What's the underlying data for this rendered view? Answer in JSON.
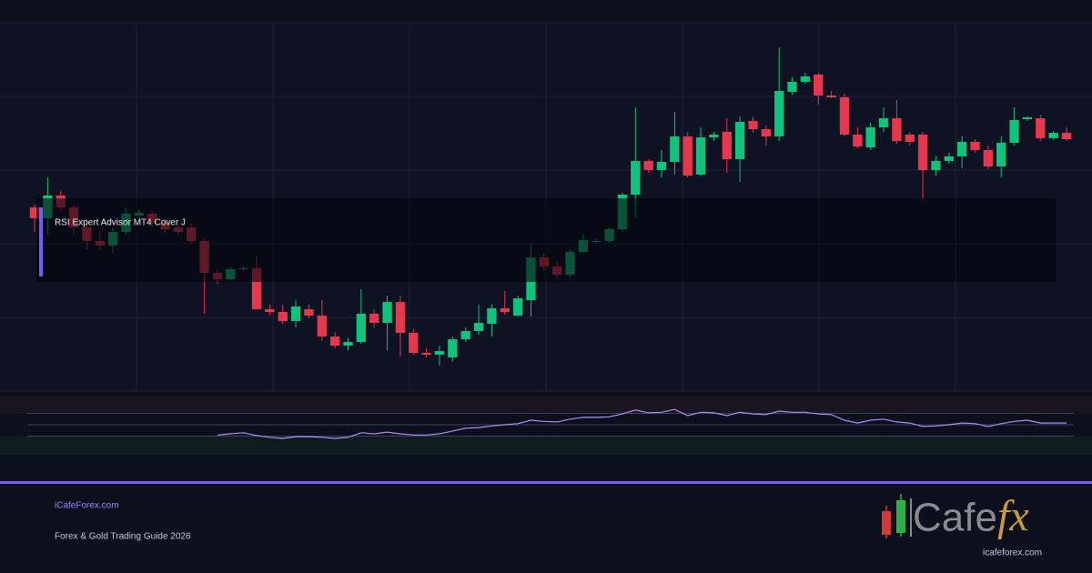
{
  "chart_data": [
    {
      "type": "candlestick",
      "open": [
        202,
        190,
        215,
        202,
        180,
        165,
        160,
        175,
        193,
        195,
        185,
        180,
        180,
        165,
        130,
        123,
        134,
        135,
        90,
        87,
        77,
        90,
        83,
        60,
        50,
        54,
        85,
        75,
        98,
        64,
        42,
        40,
        37,
        57,
        66,
        74,
        91,
        83,
        100,
        147,
        137,
        128,
        153,
        164,
        165,
        178,
        216,
        253,
        243,
        252,
        280,
        238,
        279,
        285,
        255,
        297,
        288,
        280,
        329,
        340,
        348,
        325,
        323,
        282,
        268,
        290,
        300,
        282,
        282,
        243,
        253,
        258,
        274,
        265,
        247,
        273,
        299,
        300,
        278,
        284
      ],
      "high": [
        205,
        235,
        220,
        205,
        185,
        175,
        180,
        202,
        200,
        198,
        190,
        185,
        185,
        168,
        134,
        137,
        137,
        148,
        95,
        95,
        100,
        95,
        100,
        65,
        58,
        112,
        90,
        105,
        105,
        68,
        47,
        50,
        60,
        70,
        95,
        95,
        110,
        105,
        162,
        152,
        142,
        156,
        172,
        168,
        180,
        218,
        312,
        255,
        265,
        307,
        285,
        290,
        285,
        300,
        302,
        302,
        292,
        378,
        345,
        350,
        350,
        330,
        327,
        290,
        295,
        312,
        320,
        285,
        285,
        258,
        262,
        280,
        277,
        270,
        280,
        312,
        302,
        304,
        286,
        290
      ],
      "low": [
        175,
        172,
        198,
        172,
        155,
        155,
        152,
        172,
        190,
        180,
        174,
        172,
        162,
        85,
        118,
        122,
        132,
        90,
        83,
        74,
        70,
        80,
        55,
        47,
        45,
        52,
        70,
        45,
        38,
        40,
        37,
        28,
        32,
        54,
        62,
        60,
        84,
        82,
        82,
        132,
        124,
        125,
        152,
        162,
        163,
        175,
        190,
        240,
        235,
        238,
        235,
        236,
        275,
        240,
        230,
        284,
        270,
        275,
        326,
        338,
        315,
        322,
        280,
        267,
        265,
        285,
        272,
        270,
        212,
        237,
        250,
        245,
        262,
        244,
        235,
        270,
        297,
        275,
        276,
        275
      ],
      "close": [
        190,
        215,
        202,
        180,
        165,
        160,
        175,
        195,
        196,
        185,
        178,
        175,
        165,
        130,
        123,
        134,
        135,
        90,
        87,
        77,
        93,
        83,
        60,
        50,
        54,
        85,
        75,
        98,
        64,
        42,
        40,
        44,
        57,
        66,
        75,
        91,
        87,
        102,
        147,
        137,
        128,
        153,
        166,
        165,
        178,
        216,
        253,
        243,
        252,
        280,
        237,
        279,
        282,
        255,
        296,
        288,
        280,
        330,
        340,
        346,
        325,
        323,
        282,
        269,
        290,
        300,
        275,
        274,
        243,
        253,
        258,
        274,
        265,
        247,
        273,
        298,
        301,
        278,
        284,
        277
      ],
      "up_color": "#13c27a",
      "down_color": "#e5374e",
      "ylim": [
        0,
        405
      ],
      "yticks": [
        0,
        81,
        162,
        243,
        324,
        405
      ],
      "grid": true
    },
    {
      "type": "line",
      "series": [
        {
          "color": "#b48cff",
          "values": [
            null,
            null,
            null,
            null,
            null,
            null,
            null,
            null,
            null,
            null,
            null,
            null,
            null,
            null,
            32,
            34,
            36,
            31,
            28,
            26,
            29,
            29,
            28,
            26,
            28,
            36,
            34,
            37,
            34,
            32,
            32,
            34,
            39,
            44,
            45,
            48,
            50,
            52,
            58,
            56,
            55,
            60,
            63,
            63,
            64,
            69,
            76,
            71,
            72,
            77,
            66,
            72,
            71,
            66,
            72,
            69,
            68,
            74,
            72,
            72,
            69,
            68,
            58,
            53,
            58,
            60,
            55,
            53,
            47,
            48,
            50,
            53,
            52,
            47,
            52,
            56,
            58,
            53,
            53,
            53
          ]
        }
      ],
      "ylim": [
        0,
        100
      ],
      "yticks": [
        30,
        50,
        70
      ]
    }
  ],
  "overlay": {
    "title": "RSI Expert Advisor MT4 Cover J"
  },
  "footer": {
    "site": "iCafeForex.com",
    "tagline": "Forex & Gold Trading Guide 2026"
  },
  "logo": {
    "text": "Cafe",
    "accent": "fx",
    "url": "icafeforex.com"
  }
}
